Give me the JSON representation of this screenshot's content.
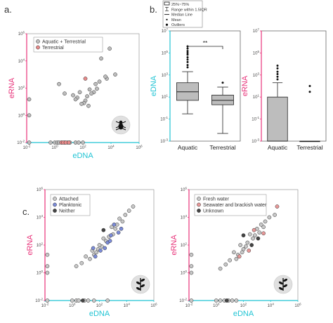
{
  "panel_labels": [
    "a.",
    "b.",
    "c."
  ],
  "colors": {
    "edna_axis": "#22c4d4",
    "erna_axis": "#e8337a",
    "aquatic_terrestrial": "#bdbdbd",
    "terrestrial": "#e88a8a",
    "attached": "#c8c8c8",
    "planktonic": "#7b8bd8",
    "neither": "#444444",
    "fresh_water": "#c8c8c8",
    "seawater": "#e89898",
    "unknown": "#444444",
    "box_fill": "#bdbdbd"
  },
  "icons": [
    "insect-silhouette-icon",
    "plant-silhouette-icon"
  ],
  "chart_data": [
    {
      "id": "a",
      "type": "scatter",
      "xlabel": "eDNA",
      "ylabel": "eRNA",
      "x_scale": "log",
      "y_scale": "log",
      "xlim": [
        0.01,
        1000000
      ],
      "ylim": [
        0.01,
        1000000
      ],
      "tick_labels": [
        "10-2",
        "100",
        "102",
        "104",
        "106"
      ],
      "legend": [
        "Aquatic + Terrestrial",
        "Terrestrial"
      ],
      "series": [
        {
          "name": "Aquatic + Terrestrial",
          "points": [
            [
              8000,
              80000
            ],
            [
              2000,
              15000
            ],
            [
              20000,
              1000
            ],
            [
              5000,
              500
            ],
            [
              4000,
              700
            ],
            [
              1500,
              300
            ],
            [
              1000,
              90
            ],
            [
              800,
              200
            ],
            [
              600,
              50
            ],
            [
              400,
              40
            ],
            [
              300,
              80
            ],
            [
              200,
              25
            ],
            [
              150,
              12
            ],
            [
              120,
              8
            ],
            [
              60,
              50
            ],
            [
              40,
              20
            ],
            [
              30,
              15
            ],
            [
              20,
              30
            ],
            [
              80,
              7
            ],
            [
              250,
              5
            ],
            [
              5,
              40
            ],
            [
              2,
              200
            ],
            [
              0.015,
              15
            ],
            [
              0.015,
              1
            ],
            [
              0.5,
              0.01
            ],
            [
              1,
              0.01
            ],
            [
              1.5,
              0.01
            ],
            [
              2,
              0.01
            ],
            [
              3,
              0.01
            ],
            [
              5,
              0.01
            ],
            [
              8,
              0.01
            ],
            [
              12,
              0.01
            ],
            [
              30,
              0.01
            ],
            [
              50,
              0.01
            ],
            [
              100,
              0.01
            ],
            [
              0.015,
              0.01
            ]
          ]
        },
        {
          "name": "Terrestrial",
          "points": [
            [
              150,
              500
            ],
            [
              3,
              0.01
            ],
            [
              4,
              0.01
            ],
            [
              6,
              0.01
            ],
            [
              10,
              0.01
            ]
          ]
        }
      ]
    },
    {
      "id": "b-left",
      "type": "box",
      "ylabel": "eDNA",
      "y_scale": "log",
      "ylim": [
        0.001,
        10000000
      ],
      "tick_labels": [
        "10-3",
        "10-1",
        "101",
        "103",
        "105",
        "107"
      ],
      "categories": [
        "Aquatic",
        "Terrestrial"
      ],
      "significance": "**",
      "boxes": [
        {
          "name": "Aquatic",
          "whisker_low": 0.3,
          "q1": 5,
          "median": 30,
          "q3": 200,
          "whisker_high": 2000,
          "outliers": [
            5000,
            8000,
            15000,
            25000,
            40000,
            70000,
            100000,
            150000,
            250000,
            400000
          ]
        },
        {
          "name": "Terrestrial",
          "whisker_low": 0.005,
          "q1": 2,
          "median": 5,
          "q3": 15,
          "whisker_high": 80,
          "outliers": [
            200
          ]
        }
      ],
      "legend": [
        "25%~75%",
        "Range within 1.5IQR",
        "Median Line",
        "Mean",
        "Outliers"
      ]
    },
    {
      "id": "b-right",
      "type": "box",
      "ylabel": "eRNA",
      "y_scale": "log",
      "ylim": [
        0.001,
        10000000
      ],
      "tick_labels": [
        "10-3",
        "10-1",
        "101",
        "103",
        "105",
        "107"
      ],
      "categories": [
        "Aquatic",
        "Terrestrial"
      ],
      "boxes": [
        {
          "name": "Aquatic",
          "whisker_low": 0.001,
          "q1": 0.001,
          "median": 0.001,
          "q3": 10,
          "whisker_high": 200,
          "outliers": [
            400,
            700,
            1200,
            2000,
            4000,
            7000
          ]
        },
        {
          "name": "Terrestrial",
          "whisker_low": 0.001,
          "q1": 0.001,
          "median": 0.001,
          "q3": 0.001,
          "whisker_high": 0.001,
          "outliers": [
            30,
            100
          ]
        }
      ]
    },
    {
      "id": "c-left",
      "type": "scatter",
      "xlabel": "eDNA",
      "ylabel": "eRNA",
      "x_scale": "log",
      "y_scale": "log",
      "xlim": [
        0.01,
        1000000
      ],
      "ylim": [
        0.01,
        1000000
      ],
      "tick_labels": [
        "10-2",
        "100",
        "102",
        "104",
        "106"
      ],
      "legend": [
        "Attached",
        "Planktonic",
        "Neither"
      ],
      "series": [
        {
          "name": "Attached",
          "points": [
            [
              30000,
              60000
            ],
            [
              15000,
              30000
            ],
            [
              8000,
              15000
            ],
            [
              5000,
              5000
            ],
            [
              3000,
              8000
            ],
            [
              2000,
              3000
            ],
            [
              1500,
              1500
            ],
            [
              1000,
              600
            ],
            [
              800,
              2000
            ],
            [
              500,
              400
            ],
            [
              300,
              200
            ],
            [
              200,
              300
            ],
            [
              150,
              80
            ],
            [
              100,
              100
            ],
            [
              80,
              50
            ],
            [
              60,
              30
            ],
            [
              40,
              20
            ],
            [
              30,
              40
            ],
            [
              20,
              10
            ],
            [
              10,
              15
            ],
            [
              5,
              5
            ],
            [
              2,
              3
            ],
            [
              0.015,
              20
            ],
            [
              0.015,
              3
            ],
            [
              0.015,
              1
            ],
            [
              1,
              0.01
            ],
            [
              2,
              0.01
            ],
            [
              3,
              0.01
            ],
            [
              8,
              0.01
            ],
            [
              15,
              0.01
            ],
            [
              40,
              0.01
            ],
            [
              0.015,
              0.01
            ],
            [
              400,
              0.01
            ]
          ]
        },
        {
          "name": "Planktonic",
          "points": [
            [
              4000,
              1500
            ],
            [
              2500,
              800
            ],
            [
              1200,
              3000
            ],
            [
              700,
              500
            ],
            [
              400,
              150
            ],
            [
              250,
              60
            ],
            [
              120,
              40
            ],
            [
              50,
              15
            ],
            [
              35,
              60
            ],
            [
              600,
              200
            ]
          ]
        },
        {
          "name": "Neither",
          "points": [
            [
              200,
              1200
            ],
            [
              6,
              0.01
            ]
          ]
        }
      ]
    },
    {
      "id": "c-right",
      "type": "scatter",
      "xlabel": "eDNA",
      "ylabel": "eRNA",
      "x_scale": "log",
      "y_scale": "log",
      "xlim": [
        0.01,
        1000000
      ],
      "ylim": [
        0.01,
        1000000
      ],
      "tick_labels": [
        "10-2",
        "100",
        "102",
        "104",
        "106"
      ],
      "legend": [
        "Fresh water",
        "Seawater and brackish water",
        "Unknown"
      ],
      "series": [
        {
          "name": "Fresh water",
          "points": [
            [
              20000,
              15000
            ],
            [
              8000,
              10000
            ],
            [
              4000,
              5000
            ],
            [
              3000,
              2000
            ],
            [
              2000,
              3000
            ],
            [
              1500,
              800
            ],
            [
              1000,
              1500
            ],
            [
              700,
              500
            ],
            [
              500,
              300
            ],
            [
              300,
              600
            ],
            [
              200,
              150
            ],
            [
              150,
              80
            ],
            [
              100,
              50
            ],
            [
              80,
              30
            ],
            [
              60,
              100
            ],
            [
              40,
              20
            ],
            [
              30,
              10
            ],
            [
              20,
              30
            ],
            [
              10,
              8
            ],
            [
              5,
              4
            ],
            [
              2,
              2
            ],
            [
              0.015,
              20
            ],
            [
              0.015,
              3
            ],
            [
              0.015,
              1
            ],
            [
              1,
              0.01
            ],
            [
              2,
              0.01
            ],
            [
              4,
              0.01
            ],
            [
              8,
              0.01
            ],
            [
              15,
              0.01
            ],
            [
              30,
              0.01
            ],
            [
              0.015,
              0.01
            ]
          ]
        },
        {
          "name": "Seawater and brackish water",
          "points": [
            [
              30000,
              60000
            ],
            [
              3000,
              700
            ],
            [
              600,
              1200
            ],
            [
              250,
              40
            ],
            [
              50,
              15
            ]
          ]
        },
        {
          "name": "Unknown",
          "points": [
            [
              1200,
              300
            ],
            [
              400,
              100
            ],
            [
              100,
              500
            ],
            [
              6,
              0.01
            ]
          ]
        }
      ]
    }
  ]
}
